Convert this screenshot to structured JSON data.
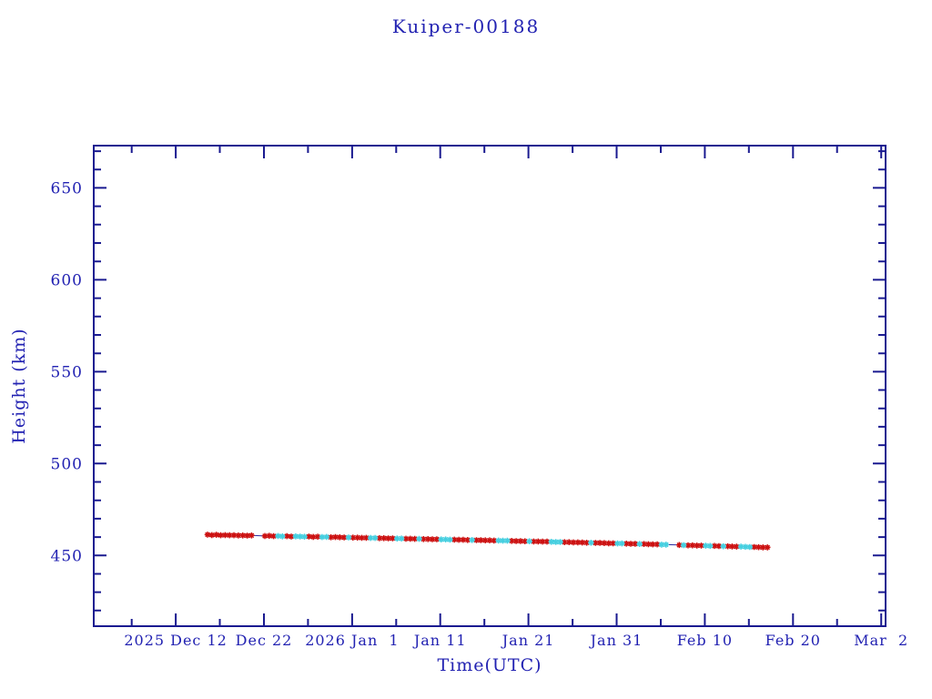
{
  "chart_data": {
    "type": "scatter",
    "title": "Kuiper-00188",
    "xlabel": "Time(UTC)",
    "ylabel": "Height (km)",
    "grid": false,
    "legend": null,
    "colors": {
      "text": "#2222b2",
      "axis": "#1a1a90",
      "line": "#2a2a9e",
      "marker_red": "#cc1111",
      "marker_cyan": "#46cfe0",
      "background": "#ffffff"
    },
    "x_axis": {
      "unit": "days since 2025-12-12 00:00 UTC",
      "range": [
        -9.3,
        80.5
      ],
      "major_tick_days": [
        0,
        10,
        20,
        30,
        40,
        50,
        60,
        70,
        80
      ],
      "major_tick_labels": [
        "2025 Dec 12",
        "Dec 22",
        "2026 Jan  1",
        "Jan 11",
        "Jan 21",
        "Jan 31",
        "Feb 10",
        "Feb 20",
        "Mar  2"
      ],
      "minor_tick_step": 5
    },
    "y_axis": {
      "range": [
        411.5,
        673.0
      ],
      "major_ticks": [
        450,
        500,
        550,
        600,
        650
      ],
      "major_tick_labels": [
        "450",
        "500",
        "550",
        "600",
        "650"
      ],
      "minor_tick_step": 10
    },
    "series": [
      {
        "name": "height",
        "marker": "asterisk",
        "color_key": [
          "marker_red",
          "marker_cyan"
        ],
        "points": [
          [
            3.6,
            461.3,
            0
          ],
          [
            4.1,
            461.1,
            0
          ],
          [
            4.6,
            461.2,
            0
          ],
          [
            5.1,
            461.0,
            0
          ],
          [
            5.6,
            461.1,
            0
          ],
          [
            6.1,
            461.0,
            0
          ],
          [
            6.6,
            461.0,
            0
          ],
          [
            7.1,
            460.9,
            0
          ],
          [
            7.6,
            460.9,
            0
          ],
          [
            8.1,
            460.8,
            0
          ],
          [
            8.6,
            460.9,
            0
          ],
          [
            10.1,
            460.6,
            0
          ],
          [
            10.6,
            460.7,
            0
          ],
          [
            11.1,
            460.5,
            0
          ],
          [
            11.6,
            460.6,
            1
          ],
          [
            12.1,
            460.4,
            1
          ],
          [
            12.6,
            460.5,
            0
          ],
          [
            13.1,
            460.3,
            0
          ],
          [
            13.6,
            460.4,
            1
          ],
          [
            14.1,
            460.3,
            1
          ],
          [
            14.6,
            460.2,
            1
          ],
          [
            15.1,
            460.3,
            0
          ],
          [
            15.6,
            460.1,
            0
          ],
          [
            16.1,
            460.2,
            0
          ],
          [
            16.6,
            460.0,
            1
          ],
          [
            17.1,
            460.1,
            1
          ],
          [
            17.6,
            459.9,
            0
          ],
          [
            18.1,
            460.0,
            0
          ],
          [
            18.6,
            459.9,
            0
          ],
          [
            19.1,
            459.8,
            0
          ],
          [
            19.6,
            459.8,
            1
          ],
          [
            20.1,
            459.7,
            0
          ],
          [
            20.6,
            459.7,
            0
          ],
          [
            21.1,
            459.6,
            0
          ],
          [
            21.6,
            459.6,
            0
          ],
          [
            22.1,
            459.5,
            1
          ],
          [
            22.6,
            459.5,
            1
          ],
          [
            23.1,
            459.4,
            0
          ],
          [
            23.6,
            459.4,
            0
          ],
          [
            24.1,
            459.3,
            0
          ],
          [
            24.6,
            459.3,
            0
          ],
          [
            25.1,
            459.2,
            1
          ],
          [
            25.6,
            459.2,
            1
          ],
          [
            26.1,
            459.1,
            0
          ],
          [
            26.6,
            459.1,
            0
          ],
          [
            27.1,
            459.0,
            0
          ],
          [
            27.6,
            459.0,
            1
          ],
          [
            28.1,
            458.9,
            0
          ],
          [
            28.6,
            458.9,
            0
          ],
          [
            29.1,
            458.8,
            0
          ],
          [
            29.6,
            458.8,
            0
          ],
          [
            30.1,
            458.7,
            1
          ],
          [
            30.6,
            458.7,
            1
          ],
          [
            31.1,
            458.6,
            1
          ],
          [
            31.6,
            458.6,
            0
          ],
          [
            32.1,
            458.5,
            0
          ],
          [
            32.6,
            458.5,
            0
          ],
          [
            33.1,
            458.4,
            0
          ],
          [
            33.6,
            458.4,
            1
          ],
          [
            34.1,
            458.3,
            0
          ],
          [
            34.6,
            458.3,
            0
          ],
          [
            35.1,
            458.2,
            0
          ],
          [
            35.6,
            458.2,
            0
          ],
          [
            36.1,
            458.1,
            0
          ],
          [
            36.6,
            458.1,
            1
          ],
          [
            37.1,
            458.0,
            1
          ],
          [
            37.6,
            458.0,
            1
          ],
          [
            38.1,
            457.9,
            0
          ],
          [
            38.6,
            457.8,
            0
          ],
          [
            39.1,
            457.8,
            0
          ],
          [
            39.6,
            457.7,
            0
          ],
          [
            40.1,
            457.7,
            1
          ],
          [
            40.6,
            457.6,
            0
          ],
          [
            41.1,
            457.6,
            0
          ],
          [
            41.6,
            457.5,
            0
          ],
          [
            42.1,
            457.5,
            0
          ],
          [
            42.6,
            457.4,
            1
          ],
          [
            43.1,
            457.3,
            1
          ],
          [
            43.6,
            457.3,
            1
          ],
          [
            44.1,
            457.2,
            0
          ],
          [
            44.6,
            457.2,
            0
          ],
          [
            45.1,
            457.1,
            0
          ],
          [
            45.6,
            457.1,
            0
          ],
          [
            46.1,
            457.0,
            0
          ],
          [
            46.6,
            456.9,
            0
          ],
          [
            47.1,
            456.9,
            1
          ],
          [
            47.6,
            456.8,
            0
          ],
          [
            48.1,
            456.8,
            0
          ],
          [
            48.6,
            456.7,
            0
          ],
          [
            49.1,
            456.6,
            0
          ],
          [
            49.6,
            456.6,
            0
          ],
          [
            50.1,
            456.5,
            1
          ],
          [
            50.6,
            456.5,
            1
          ],
          [
            51.1,
            456.4,
            0
          ],
          [
            51.6,
            456.3,
            0
          ],
          [
            52.1,
            456.3,
            0
          ],
          [
            52.6,
            456.2,
            1
          ],
          [
            53.1,
            456.2,
            0
          ],
          [
            53.6,
            456.1,
            0
          ],
          [
            54.1,
            456.0,
            0
          ],
          [
            54.6,
            456.0,
            0
          ],
          [
            55.1,
            455.9,
            1
          ],
          [
            55.6,
            455.9,
            1
          ],
          [
            57.1,
            455.7,
            0
          ],
          [
            57.6,
            455.6,
            1
          ],
          [
            58.1,
            455.5,
            0
          ],
          [
            58.6,
            455.5,
            0
          ],
          [
            59.1,
            455.4,
            0
          ],
          [
            59.6,
            455.4,
            0
          ],
          [
            60.1,
            455.3,
            1
          ],
          [
            60.6,
            455.2,
            1
          ],
          [
            61.1,
            455.2,
            0
          ],
          [
            61.6,
            455.1,
            0
          ],
          [
            62.1,
            455.0,
            1
          ],
          [
            62.6,
            455.0,
            0
          ],
          [
            63.1,
            454.9,
            0
          ],
          [
            63.6,
            454.8,
            0
          ],
          [
            64.1,
            454.8,
            1
          ],
          [
            64.6,
            454.7,
            1
          ],
          [
            65.1,
            454.6,
            1
          ],
          [
            65.6,
            454.6,
            0
          ],
          [
            66.1,
            454.5,
            0
          ],
          [
            66.6,
            454.4,
            0
          ],
          [
            67.1,
            454.4,
            0
          ]
        ]
      }
    ]
  }
}
